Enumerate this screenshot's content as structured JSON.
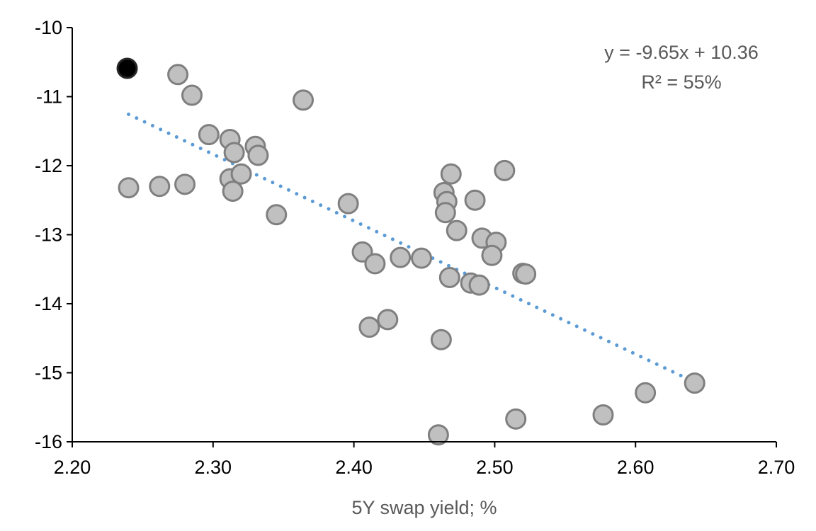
{
  "chart_data": {
    "type": "scatter",
    "title": "",
    "xlabel": "5Y swap yield; %",
    "ylabel": "",
    "xlim": [
      2.2,
      2.7
    ],
    "ylim": [
      -16,
      -10
    ],
    "x_ticks": [
      "2.20",
      "2.30",
      "2.40",
      "2.50",
      "2.60",
      "2.70"
    ],
    "y_ticks": [
      "-10",
      "-11",
      "-12",
      "-13",
      "-14",
      "-15",
      "-16"
    ],
    "grid": false,
    "legend": "none",
    "colors": {
      "point_fill": "#c0c0c0",
      "point_stroke": "#7f7f7f",
      "highlight_fill": "#000000",
      "trendline": "#5b9bd5",
      "axis": "#000000"
    },
    "highlight_point": {
      "x": 2.239,
      "y": -10.59
    },
    "points": [
      {
        "x": 2.275,
        "y": -10.68
      },
      {
        "x": 2.285,
        "y": -10.98
      },
      {
        "x": 2.364,
        "y": -11.05
      },
      {
        "x": 2.24,
        "y": -12.32
      },
      {
        "x": 2.262,
        "y": -12.3
      },
      {
        "x": 2.28,
        "y": -12.27
      },
      {
        "x": 2.297,
        "y": -11.55
      },
      {
        "x": 2.312,
        "y": -11.62
      },
      {
        "x": 2.315,
        "y": -11.81
      },
      {
        "x": 2.33,
        "y": -11.72
      },
      {
        "x": 2.332,
        "y": -11.85
      },
      {
        "x": 2.312,
        "y": -12.19
      },
      {
        "x": 2.32,
        "y": -12.12
      },
      {
        "x": 2.314,
        "y": -12.37
      },
      {
        "x": 2.345,
        "y": -12.71
      },
      {
        "x": 2.396,
        "y": -12.55
      },
      {
        "x": 2.406,
        "y": -13.25
      },
      {
        "x": 2.415,
        "y": -13.42
      },
      {
        "x": 2.433,
        "y": -13.33
      },
      {
        "x": 2.448,
        "y": -13.34
      },
      {
        "x": 2.411,
        "y": -14.34
      },
      {
        "x": 2.424,
        "y": -14.23
      },
      {
        "x": 2.462,
        "y": -14.52
      },
      {
        "x": 2.46,
        "y": -15.9
      },
      {
        "x": 2.469,
        "y": -12.12
      },
      {
        "x": 2.464,
        "y": -12.39
      },
      {
        "x": 2.466,
        "y": -12.52
      },
      {
        "x": 2.465,
        "y": -12.68
      },
      {
        "x": 2.473,
        "y": -12.94
      },
      {
        "x": 2.468,
        "y": -13.62
      },
      {
        "x": 2.486,
        "y": -12.5
      },
      {
        "x": 2.507,
        "y": -12.07
      },
      {
        "x": 2.491,
        "y": -13.05
      },
      {
        "x": 2.501,
        "y": -13.11
      },
      {
        "x": 2.498,
        "y": -13.3
      },
      {
        "x": 2.483,
        "y": -13.7
      },
      {
        "x": 2.489,
        "y": -13.73
      },
      {
        "x": 2.52,
        "y": -13.56
      },
      {
        "x": 2.522,
        "y": -13.57
      },
      {
        "x": 2.515,
        "y": -15.67
      },
      {
        "x": 2.577,
        "y": -15.61
      },
      {
        "x": 2.607,
        "y": -15.29
      },
      {
        "x": 2.642,
        "y": -15.15
      }
    ],
    "trendline": {
      "slope": -9.65,
      "intercept": 10.36,
      "x_range": [
        2.24,
        2.64
      ],
      "style": "dotted"
    },
    "annotations": {
      "equation": "y = -9.65x + 10.36",
      "r_squared": "R² = 55%"
    }
  }
}
